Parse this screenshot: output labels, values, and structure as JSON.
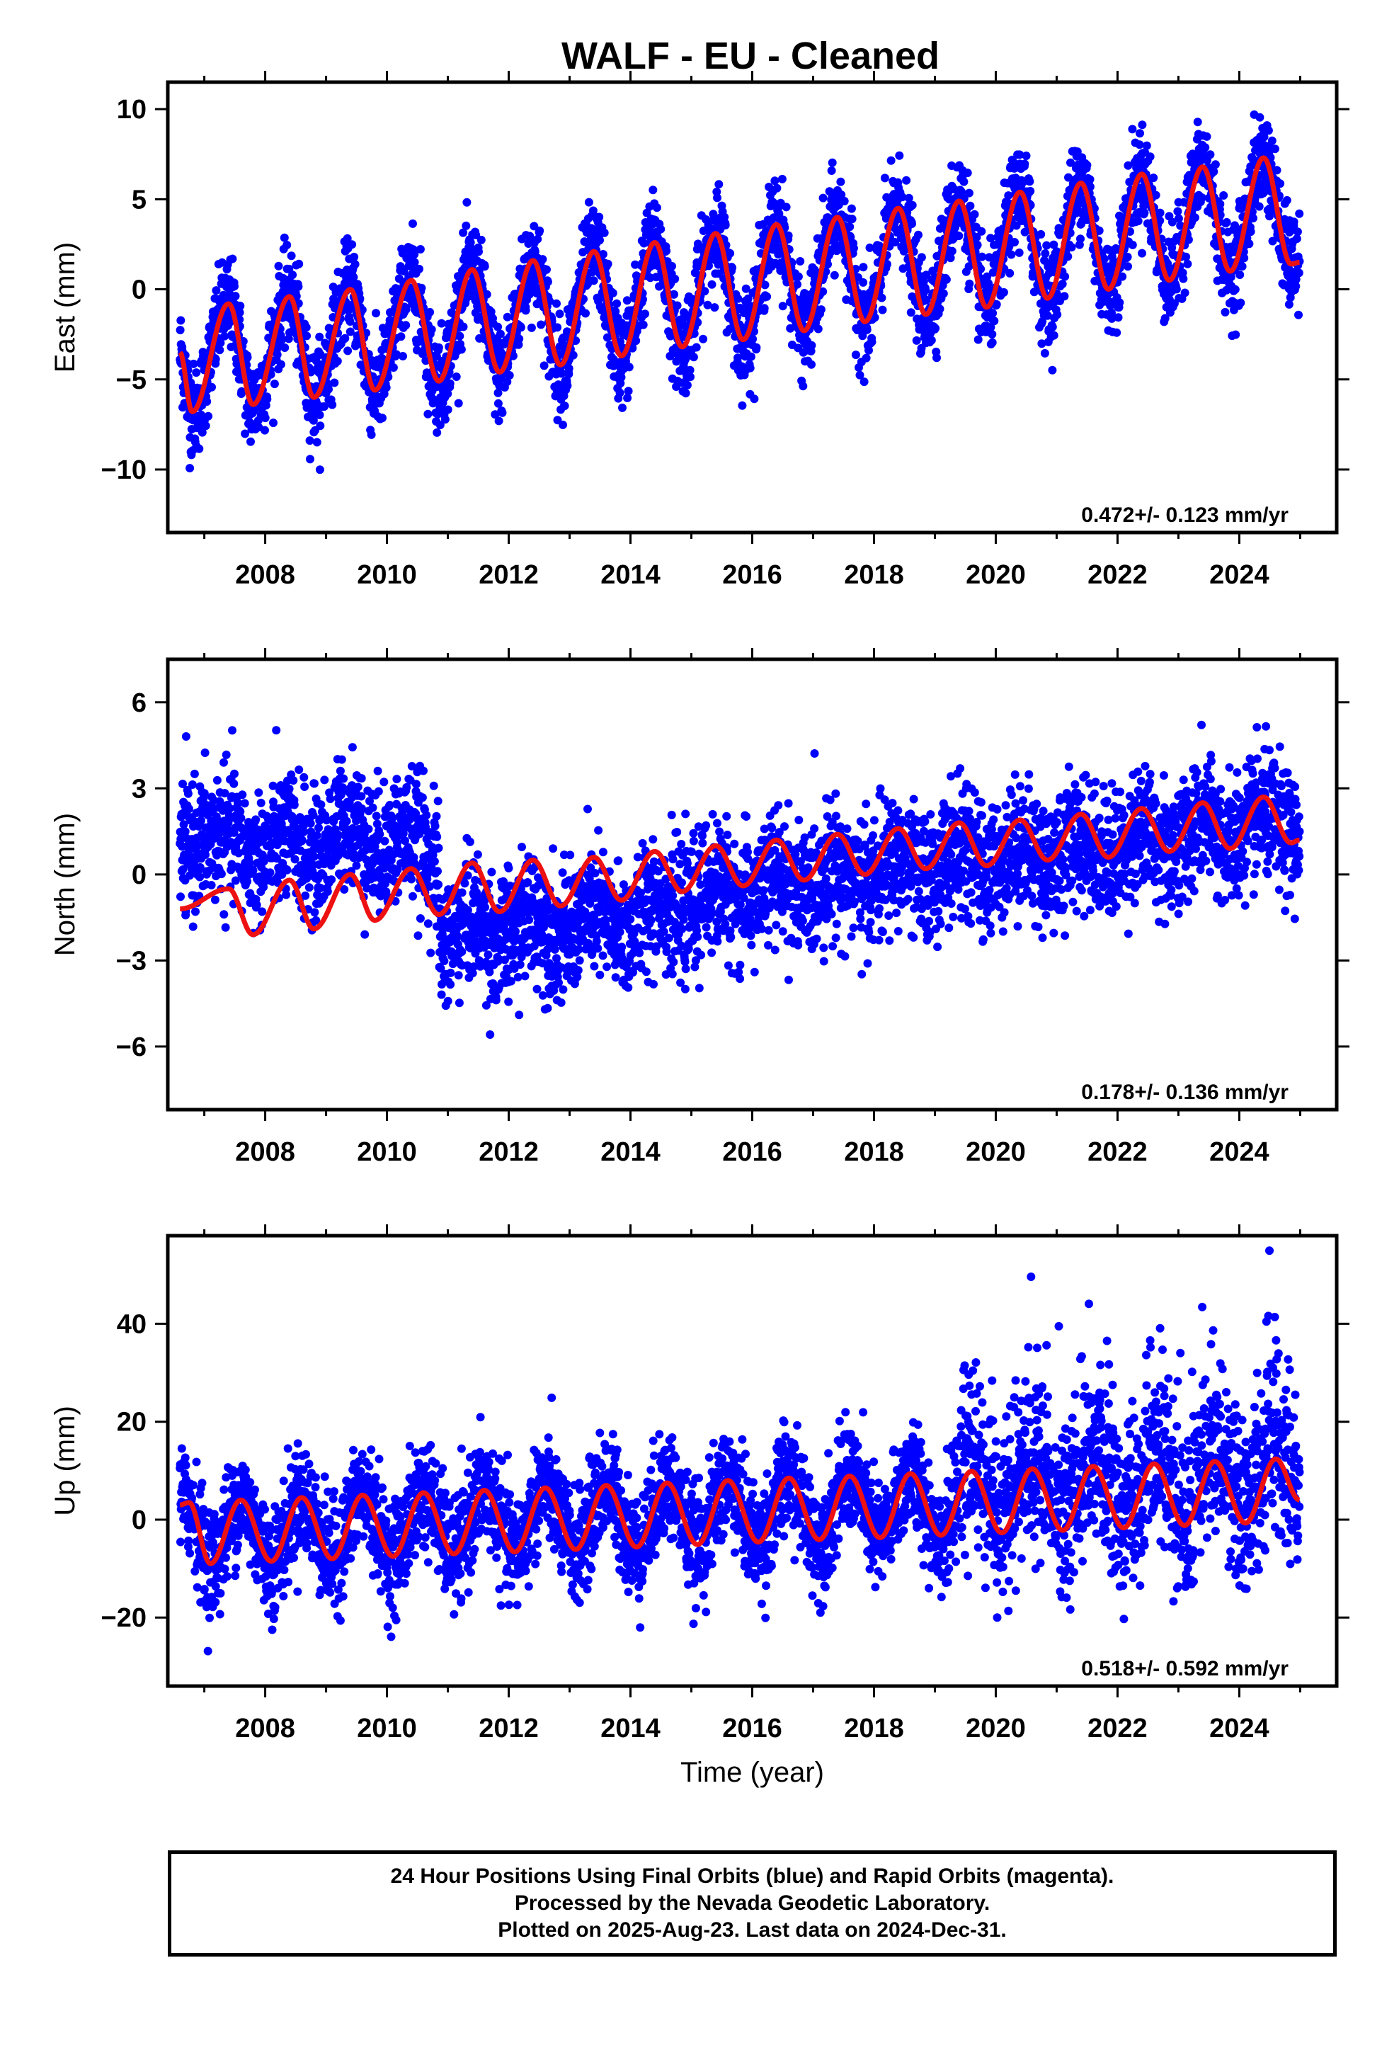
{
  "title": "WALF  - EU - Cleaned",
  "colors": {
    "points": "#0000ff",
    "fit": "#ee1111",
    "frame": "#000000"
  },
  "footer": {
    "line1": "24 Hour Positions Using Final Orbits (blue) and Rapid Orbits (magenta).",
    "line2": "Processed by the Nevada Geodetic Laboratory.",
    "line3": "Plotted on 2025-Aug-23. Last data on 2024-Dec-31."
  },
  "chart_data": [
    {
      "type": "scatter",
      "component": "east",
      "ylabel": "East (mm)",
      "xlabel": "",
      "xlim": [
        2006.4,
        2025.6
      ],
      "ylim": [
        -13.5,
        11.5
      ],
      "xticks": [
        2008,
        2010,
        2012,
        2014,
        2016,
        2018,
        2020,
        2022,
        2024
      ],
      "yticks": [
        -10,
        -5,
        0,
        5,
        10
      ],
      "yticklabels": [
        "−10",
        "−5",
        "0",
        "5",
        "10"
      ],
      "rate_label": "0.472+/- 0.123 mm/yr",
      "data_span": [
        2006.6,
        2024.99
      ],
      "fit_points": [
        [
          2006.6,
          -3.5
        ],
        [
          2006.8,
          -6.8
        ],
        [
          2007.4,
          -0.8
        ],
        [
          2007.8,
          -6.4
        ],
        [
          2008.4,
          -0.4
        ],
        [
          2008.8,
          -6.0
        ],
        [
          2009.4,
          0.0
        ],
        [
          2009.8,
          -5.6
        ],
        [
          2010.4,
          0.5
        ],
        [
          2010.85,
          -5.1
        ],
        [
          2011.4,
          1.1
        ],
        [
          2011.85,
          -4.6
        ],
        [
          2012.4,
          1.6
        ],
        [
          2012.85,
          -4.2
        ],
        [
          2013.4,
          2.1
        ],
        [
          2013.85,
          -3.7
        ],
        [
          2014.4,
          2.6
        ],
        [
          2014.85,
          -3.2
        ],
        [
          2015.4,
          3.1
        ],
        [
          2015.85,
          -2.8
        ],
        [
          2016.4,
          3.6
        ],
        [
          2016.85,
          -2.3
        ],
        [
          2017.4,
          4.0
        ],
        [
          2017.85,
          -1.8
        ],
        [
          2018.4,
          4.5
        ],
        [
          2018.85,
          -1.4
        ],
        [
          2019.4,
          4.9
        ],
        [
          2019.85,
          -1.0
        ],
        [
          2020.4,
          5.4
        ],
        [
          2020.85,
          -0.5
        ],
        [
          2021.4,
          5.9
        ],
        [
          2021.85,
          0.0
        ],
        [
          2022.4,
          6.4
        ],
        [
          2022.85,
          0.5
        ],
        [
          2023.4,
          6.8
        ],
        [
          2023.85,
          1.0
        ],
        [
          2024.4,
          7.3
        ],
        [
          2024.85,
          1.4
        ],
        [
          2024.99,
          1.5
        ]
      ],
      "noise": 1.3
    },
    {
      "type": "scatter",
      "component": "north",
      "ylabel": "North (mm)",
      "xlabel": "",
      "xlim": [
        2006.4,
        2025.6
      ],
      "ylim": [
        -8.2,
        7.5
      ],
      "xticks": [
        2008,
        2010,
        2012,
        2014,
        2016,
        2018,
        2020,
        2022,
        2024
      ],
      "yticks": [
        -6,
        -3,
        0,
        3,
        6
      ],
      "yticklabels": [
        "−6",
        "−3",
        "0",
        "3",
        "6"
      ],
      "rate_label": "0.178+/- 0.136 mm/yr",
      "data_span": [
        2006.6,
        2024.99
      ],
      "fit_points": [
        [
          2006.6,
          -1.2
        ],
        [
          2007.4,
          -0.5
        ],
        [
          2007.8,
          -2.1
        ],
        [
          2008.4,
          -0.2
        ],
        [
          2008.8,
          -1.9
        ],
        [
          2009.4,
          0.0
        ],
        [
          2009.8,
          -1.6
        ],
        [
          2010.4,
          0.2
        ],
        [
          2010.85,
          -1.4
        ],
        [
          2011.4,
          0.4
        ],
        [
          2011.85,
          -1.3
        ],
        [
          2012.4,
          0.5
        ],
        [
          2012.85,
          -1.1
        ],
        [
          2013.4,
          0.6
        ],
        [
          2013.85,
          -0.9
        ],
        [
          2014.4,
          0.8
        ],
        [
          2014.85,
          -0.6
        ],
        [
          2015.4,
          1.0
        ],
        [
          2015.85,
          -0.4
        ],
        [
          2016.4,
          1.2
        ],
        [
          2016.85,
          -0.2
        ],
        [
          2017.4,
          1.4
        ],
        [
          2017.85,
          0.0
        ],
        [
          2018.4,
          1.6
        ],
        [
          2018.85,
          0.2
        ],
        [
          2019.4,
          1.8
        ],
        [
          2019.85,
          0.3
        ],
        [
          2020.4,
          1.9
        ],
        [
          2020.85,
          0.5
        ],
        [
          2021.4,
          2.1
        ],
        [
          2021.85,
          0.6
        ],
        [
          2022.4,
          2.3
        ],
        [
          2022.85,
          0.8
        ],
        [
          2023.4,
          2.5
        ],
        [
          2023.85,
          0.9
        ],
        [
          2024.4,
          2.7
        ],
        [
          2024.85,
          1.1
        ],
        [
          2024.99,
          1.2
        ]
      ],
      "offset_points": [
        [
          2006.6,
          1.4
        ],
        [
          2007.5,
          1.8
        ],
        [
          2008.5,
          1.2
        ],
        [
          2009.4,
          2.4
        ],
        [
          2010.0,
          1.5
        ],
        [
          2010.8,
          0.4
        ],
        [
          2010.9,
          -2.8
        ],
        [
          2012.0,
          -2.6
        ],
        [
          2013.0,
          -2.5
        ],
        [
          2014.0,
          -2.3
        ],
        [
          2014.6,
          -1.4
        ],
        [
          2016.0,
          -0.6
        ],
        [
          2018.0,
          0.2
        ],
        [
          2020.0,
          1.0
        ],
        [
          2022.0,
          1.6
        ],
        [
          2024.0,
          2.4
        ],
        [
          2024.99,
          2.6
        ]
      ],
      "noise": 1.1
    },
    {
      "type": "scatter",
      "component": "up",
      "ylabel": "Up (mm)",
      "xlabel": "Time (year)",
      "xlim": [
        2006.4,
        2025.6
      ],
      "ylim": [
        -34,
        58
      ],
      "xticks": [
        2008,
        2010,
        2012,
        2014,
        2016,
        2018,
        2020,
        2022,
        2024
      ],
      "yticks": [
        -20,
        0,
        20,
        40
      ],
      "yticklabels": [
        "−20",
        "0",
        "20",
        "40"
      ],
      "rate_label": "0.518+/- 0.592 mm/yr",
      "data_span": [
        2006.6,
        2024.99
      ],
      "fit_points": [
        [
          2006.6,
          3.0
        ],
        [
          2006.75,
          3.5
        ],
        [
          2007.1,
          -9.0
        ],
        [
          2007.6,
          4.0
        ],
        [
          2008.1,
          -8.5
        ],
        [
          2008.6,
          4.5
        ],
        [
          2009.1,
          -8.0
        ],
        [
          2009.6,
          5.0
        ],
        [
          2010.1,
          -7.5
        ],
        [
          2010.6,
          5.5
        ],
        [
          2011.1,
          -7.0
        ],
        [
          2011.6,
          6.0
        ],
        [
          2012.1,
          -6.6
        ],
        [
          2012.6,
          6.5
        ],
        [
          2013.1,
          -6.1
        ],
        [
          2013.6,
          7.0
        ],
        [
          2014.1,
          -5.6
        ],
        [
          2014.6,
          7.5
        ],
        [
          2015.1,
          -5.1
        ],
        [
          2015.6,
          8.0
        ],
        [
          2016.1,
          -4.6
        ],
        [
          2016.6,
          8.5
        ],
        [
          2017.1,
          -4.1
        ],
        [
          2017.6,
          8.9
        ],
        [
          2018.1,
          -3.7
        ],
        [
          2018.6,
          9.4
        ],
        [
          2019.1,
          -3.2
        ],
        [
          2019.6,
          9.9
        ],
        [
          2020.1,
          -2.7
        ],
        [
          2020.6,
          10.4
        ],
        [
          2021.1,
          -2.2
        ],
        [
          2021.6,
          10.9
        ],
        [
          2022.1,
          -1.7
        ],
        [
          2022.6,
          11.4
        ],
        [
          2023.1,
          -1.2
        ],
        [
          2023.6,
          11.9
        ],
        [
          2024.1,
          -0.7
        ],
        [
          2024.6,
          12.4
        ],
        [
          2024.99,
          4.0
        ]
      ],
      "noise": 5.5,
      "noise_late": 10.0,
      "noise_late_start": 2019.4
    }
  ]
}
